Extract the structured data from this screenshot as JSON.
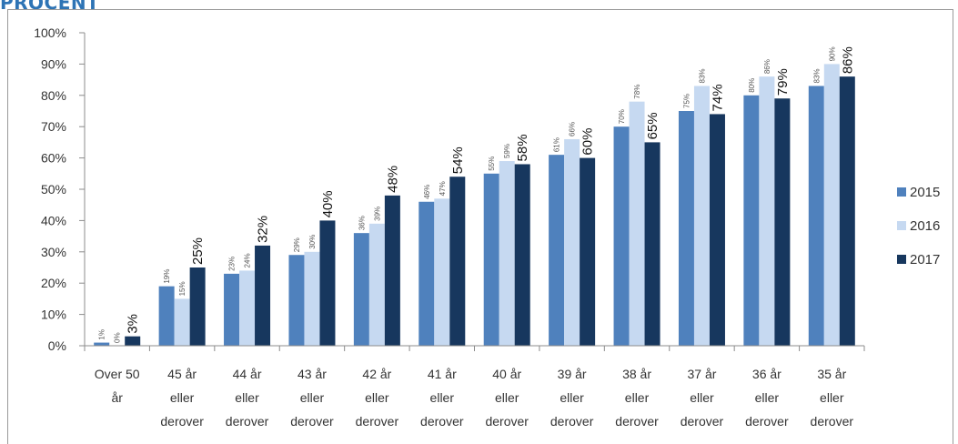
{
  "header": {
    "title": "PROCENT"
  },
  "chart_data": {
    "type": "bar",
    "categories": [
      [
        "Over 50",
        "år"
      ],
      [
        "45 år",
        "eller",
        "derover"
      ],
      [
        "44 år",
        "eller",
        "derover"
      ],
      [
        "43 år",
        "eller",
        "derover"
      ],
      [
        "42 år",
        "eller",
        "derover"
      ],
      [
        "41 år",
        "eller",
        "derover"
      ],
      [
        "40 år",
        "eller",
        "derover"
      ],
      [
        "39 år",
        "eller",
        "derover"
      ],
      [
        "38 år",
        "eller",
        "derover"
      ],
      [
        "37 år",
        "eller",
        "derover"
      ],
      [
        "36 år",
        "eller",
        "derover"
      ],
      [
        "35 år",
        "eller",
        "derover"
      ]
    ],
    "series": [
      {
        "name": "2015",
        "color": "#4f81bd",
        "values": [
          1,
          19,
          23,
          29,
          36,
          46,
          55,
          61,
          70,
          75,
          80,
          83
        ],
        "labels": [
          "1%",
          "19%",
          "23%",
          "29%",
          "36%",
          "46%",
          "55%",
          "61%",
          "70%",
          "75%",
          "80%",
          "83%"
        ]
      },
      {
        "name": "2016",
        "color": "#c6d9f1",
        "values": [
          0,
          15,
          24,
          30,
          39,
          47,
          59,
          66,
          78,
          83,
          86,
          90
        ],
        "labels": [
          "0%",
          "15%",
          "24%",
          "30%",
          "39%",
          "47%",
          "59%",
          "66%",
          "78%",
          "83%",
          "86%",
          "90%"
        ]
      },
      {
        "name": "2017",
        "color": "#17375e",
        "values": [
          3,
          25,
          32,
          40,
          48,
          54,
          58,
          60,
          65,
          74,
          79,
          86
        ],
        "labels": [
          "3%",
          "25%",
          "32%",
          "40%",
          "48%",
          "54%",
          "58%",
          "60%",
          "65%",
          "74%",
          "79%",
          "86%"
        ]
      }
    ],
    "y_ticks": [
      "0%",
      "10%",
      "20%",
      "30%",
      "40%",
      "50%",
      "60%",
      "70%",
      "80%",
      "90%",
      "100%"
    ],
    "ylim": [
      0,
      100
    ],
    "grid": false,
    "legend": "right"
  }
}
